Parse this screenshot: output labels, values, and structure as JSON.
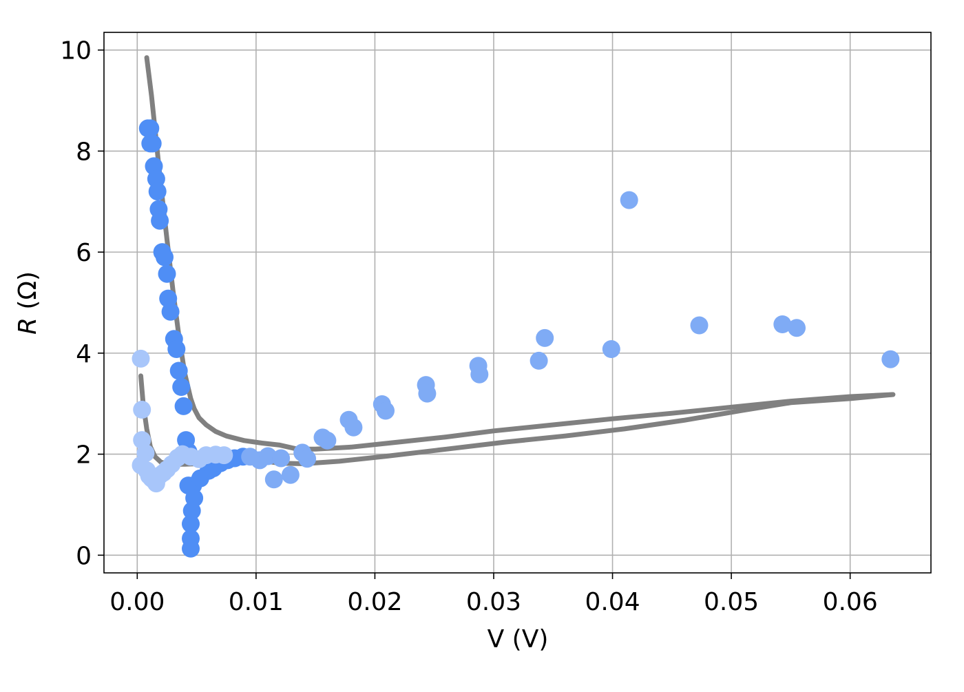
{
  "chart_data": {
    "type": "scatter",
    "title": "",
    "xlabel": "V (V)",
    "ylabel_var": "R",
    "ylabel_unit": "(Ω)",
    "xlim": [
      -0.0028,
      0.0668
    ],
    "ylim": [
      -0.35,
      10.35
    ],
    "x_ticks": [
      0.0,
      0.01,
      0.02,
      0.03,
      0.04,
      0.05,
      0.06
    ],
    "x_tick_labels": [
      "0.00",
      "0.01",
      "0.02",
      "0.03",
      "0.04",
      "0.05",
      "0.06"
    ],
    "y_ticks": [
      0,
      2,
      4,
      6,
      8,
      10
    ],
    "y_tick_labels": [
      "0",
      "2",
      "4",
      "6",
      "8",
      "10"
    ],
    "grid": true,
    "legend": "none",
    "colors": {
      "dark_blue": "#4f8ef5",
      "mid_blue": "#7fabf5",
      "light_blue": "#a8c6fa",
      "fit_line": "#808080",
      "grid": "#b0b0b0",
      "axes": "#000000"
    },
    "series": [
      {
        "kind": "points",
        "color": "#4f8ef5",
        "points": [
          [
            0.0009,
            8.45
          ],
          [
            0.0011,
            8.45
          ],
          [
            0.0011,
            8.15
          ],
          [
            0.0013,
            8.15
          ],
          [
            0.0014,
            7.7
          ],
          [
            0.0016,
            7.45
          ],
          [
            0.0017,
            7.2
          ],
          [
            0.0018,
            6.85
          ],
          [
            0.0019,
            6.62
          ],
          [
            0.0021,
            6.0
          ],
          [
            0.0023,
            5.9
          ],
          [
            0.0025,
            5.57
          ],
          [
            0.0026,
            5.08
          ],
          [
            0.0028,
            4.82
          ],
          [
            0.0031,
            4.28
          ],
          [
            0.0033,
            4.08
          ],
          [
            0.0035,
            3.65
          ],
          [
            0.0037,
            3.33
          ],
          [
            0.0039,
            2.95
          ],
          [
            0.0041,
            2.28
          ],
          [
            0.0043,
            2.05
          ],
          [
            0.0043,
            1.38
          ],
          [
            0.0047,
            1.38
          ],
          [
            0.0048,
            1.13
          ],
          [
            0.0046,
            0.88
          ],
          [
            0.0045,
            0.62
          ],
          [
            0.0045,
            0.33
          ],
          [
            0.0045,
            0.13
          ],
          [
            0.0053,
            1.52
          ],
          [
            0.006,
            1.67
          ],
          [
            0.0064,
            1.72
          ],
          [
            0.007,
            1.82
          ],
          [
            0.0076,
            1.88
          ],
          [
            0.0082,
            1.92
          ],
          [
            0.0089,
            1.95
          ]
        ]
      },
      {
        "kind": "points",
        "color": "#7fabf5",
        "points": [
          [
            0.0095,
            1.95
          ],
          [
            0.0103,
            1.88
          ],
          [
            0.011,
            1.96
          ],
          [
            0.0115,
            1.5
          ],
          [
            0.0121,
            1.92
          ],
          [
            0.0129,
            1.59
          ],
          [
            0.0139,
            2.03
          ],
          [
            0.0143,
            1.91
          ],
          [
            0.0156,
            2.33
          ],
          [
            0.016,
            2.27
          ],
          [
            0.0178,
            2.68
          ],
          [
            0.0182,
            2.53
          ],
          [
            0.0206,
            2.99
          ],
          [
            0.0209,
            2.86
          ],
          [
            0.0243,
            3.37
          ],
          [
            0.0244,
            3.2
          ],
          [
            0.0287,
            3.75
          ],
          [
            0.0288,
            3.58
          ],
          [
            0.0338,
            3.85
          ],
          [
            0.0343,
            4.3
          ],
          [
            0.0399,
            4.08
          ],
          [
            0.0414,
            7.03
          ],
          [
            0.0473,
            4.55
          ],
          [
            0.0543,
            4.57
          ],
          [
            0.0555,
            4.5
          ],
          [
            0.0634,
            3.88
          ]
        ]
      },
      {
        "kind": "points",
        "color": "#a8c6fa",
        "points": [
          [
            0.0003,
            3.89
          ],
          [
            0.0004,
            2.88
          ],
          [
            0.0004,
            2.28
          ],
          [
            0.0003,
            1.78
          ],
          [
            0.0007,
            2.02
          ],
          [
            0.0008,
            1.68
          ],
          [
            0.001,
            1.57
          ],
          [
            0.0012,
            1.52
          ],
          [
            0.0014,
            1.48
          ],
          [
            0.0016,
            1.42
          ],
          [
            0.0019,
            1.58
          ],
          [
            0.0022,
            1.63
          ],
          [
            0.0025,
            1.7
          ],
          [
            0.0029,
            1.8
          ],
          [
            0.0034,
            1.93
          ],
          [
            0.0038,
            2.0
          ],
          [
            0.0045,
            1.95
          ],
          [
            0.0052,
            1.9
          ],
          [
            0.0058,
            1.98
          ],
          [
            0.0066,
            1.99
          ],
          [
            0.0073,
            1.98
          ]
        ]
      },
      {
        "kind": "line",
        "name": "fit-branch-upper",
        "color": "#808080",
        "points": [
          [
            0.0008,
            9.85
          ],
          [
            0.0012,
            9.1
          ],
          [
            0.0016,
            8.2
          ],
          [
            0.002,
            7.3
          ],
          [
            0.0025,
            6.25
          ],
          [
            0.003,
            5.25
          ],
          [
            0.0035,
            4.35
          ],
          [
            0.004,
            3.6
          ],
          [
            0.0045,
            3.1
          ],
          [
            0.0048,
            2.9
          ],
          [
            0.0052,
            2.72
          ],
          [
            0.0058,
            2.58
          ],
          [
            0.0066,
            2.45
          ],
          [
            0.0075,
            2.36
          ],
          [
            0.009,
            2.27
          ],
          [
            0.0105,
            2.22
          ],
          [
            0.012,
            2.18
          ],
          [
            0.0135,
            2.1
          ],
          [
            0.015,
            2.1
          ],
          [
            0.018,
            2.14
          ],
          [
            0.022,
            2.24
          ],
          [
            0.026,
            2.34
          ],
          [
            0.03,
            2.46
          ],
          [
            0.035,
            2.58
          ],
          [
            0.04,
            2.7
          ],
          [
            0.045,
            2.81
          ],
          [
            0.05,
            2.93
          ],
          [
            0.055,
            3.05
          ],
          [
            0.06,
            3.14
          ],
          [
            0.0636,
            3.18
          ]
        ]
      },
      {
        "kind": "line",
        "name": "fit-branch-lower",
        "color": "#808080",
        "points": [
          [
            0.0003,
            3.55
          ],
          [
            0.0005,
            3.0
          ],
          [
            0.0008,
            2.5
          ],
          [
            0.0011,
            2.15
          ],
          [
            0.0015,
            1.95
          ],
          [
            0.002,
            1.84
          ],
          [
            0.0028,
            1.8
          ],
          [
            0.004,
            1.8
          ],
          [
            0.006,
            1.82
          ],
          [
            0.0085,
            1.86
          ],
          [
            0.0105,
            1.87
          ],
          [
            0.012,
            1.82
          ],
          [
            0.014,
            1.81
          ],
          [
            0.017,
            1.86
          ],
          [
            0.021,
            1.96
          ],
          [
            0.026,
            2.1
          ],
          [
            0.031,
            2.24
          ],
          [
            0.036,
            2.36
          ],
          [
            0.041,
            2.5
          ],
          [
            0.046,
            2.67
          ],
          [
            0.051,
            2.87
          ],
          [
            0.055,
            3.02
          ],
          [
            0.06,
            3.1
          ],
          [
            0.0636,
            3.18
          ]
        ]
      }
    ]
  }
}
